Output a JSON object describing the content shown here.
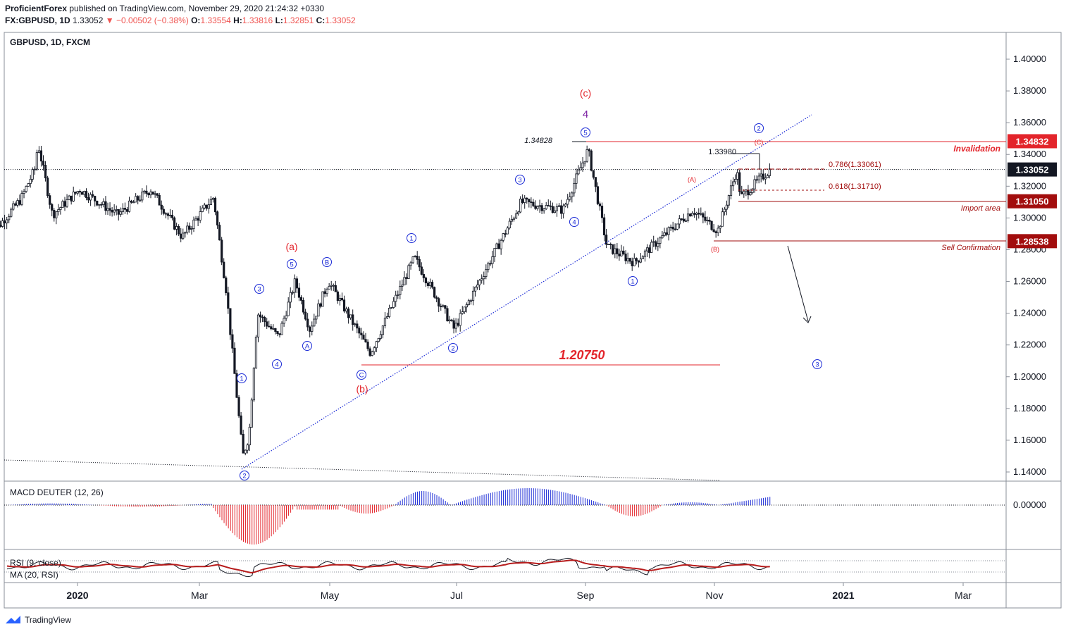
{
  "header": {
    "publisher": "ProficientForex",
    "published_text": "published on TradingView.com, November 29, 2020 21:24:32 +0330",
    "symbol_line": "FX:GBPUSD, 1D",
    "last": "1.33052",
    "change": "−0.00502 (−0.38%)",
    "o_label": "O:",
    "o_val": "1.33554",
    "h_label": "H:",
    "h_val": "1.33816",
    "l_label": "L:",
    "l_val": "1.32851",
    "c_label": "C:",
    "c_val": "1.33052"
  },
  "brand": {
    "label": "TradingView"
  },
  "colors": {
    "up": "#131722",
    "red": "#e3242b",
    "blue": "#1a2ad6",
    "label_dark": "#131722",
    "axis_red": "#e3242b",
    "axis_darkred": "#a20d0d",
    "purple": "#7b1fa2"
  },
  "chart_data": {
    "type": "candlestick",
    "title": "GBPUSD, 1D, FXCM",
    "y_axis": {
      "ticks": [
        "1.40000",
        "1.38000",
        "1.36000",
        "1.34000",
        "1.32000",
        "1.30000",
        "1.28000",
        "1.26000",
        "1.24000",
        "1.22000",
        "1.20000",
        "1.18000",
        "1.16000",
        "1.14000"
      ],
      "ylim": [
        1.135,
        1.405
      ]
    },
    "x_axis": {
      "ticks": [
        "2020",
        "Mar",
        "May",
        "Jul",
        "Sep",
        "Nov",
        "2021",
        "Mar"
      ],
      "bold": [
        "2020",
        "2021"
      ]
    },
    "price_path": [
      [
        "2019-11-20",
        1.288
      ],
      [
        "2019-12-05",
        1.312
      ],
      [
        "2019-12-12",
        1.332
      ],
      [
        "2019-12-13",
        1.348
      ],
      [
        "2019-12-20",
        1.302
      ],
      [
        "2020-01-02",
        1.318
      ],
      [
        "2020-01-20",
        1.302
      ],
      [
        "2020-02-05",
        1.318
      ],
      [
        "2020-02-20",
        1.288
      ],
      [
        "2020-03-06",
        1.313
      ],
      [
        "2020-03-12",
        1.255
      ],
      [
        "2020-03-20",
        1.15
      ],
      [
        "2020-03-23",
        1.163
      ],
      [
        "2020-03-27",
        1.24
      ],
      [
        "2020-04-06",
        1.225
      ],
      [
        "2020-04-14",
        1.26
      ],
      [
        "2020-04-21",
        1.23
      ],
      [
        "2020-04-30",
        1.26
      ],
      [
        "2020-05-20",
        1.215
      ],
      [
        "2020-06-10",
        1.275
      ],
      [
        "2020-06-29",
        1.23
      ],
      [
        "2020-07-31",
        1.31
      ],
      [
        "2020-08-20",
        1.305
      ],
      [
        "2020-09-01",
        1.343
      ],
      [
        "2020-09-10",
        1.282
      ],
      [
        "2020-09-23",
        1.272
      ],
      [
        "2020-10-21",
        1.305
      ],
      [
        "2020-11-02",
        1.292
      ],
      [
        "2020-11-11",
        1.33
      ],
      [
        "2020-11-13",
        1.313
      ],
      [
        "2020-11-27",
        1.3305
      ]
    ],
    "horizontal_levels": [
      {
        "label": "1.34832",
        "value": 1.34832,
        "axis_color": "#e3242b",
        "text": "Invalidation"
      },
      {
        "label": "1.33052",
        "value": 1.33052,
        "axis_color": "#131722",
        "text": ""
      },
      {
        "label": "1.31050",
        "value": 1.3105,
        "axis_color": "#a20d0d",
        "text": "Import area"
      },
      {
        "label": "1.28538",
        "value": 1.28538,
        "axis_color": "#a20d0d",
        "text": "Sell Confirmation"
      }
    ],
    "annotations": {
      "level_1_20750": "1.20750",
      "peak_high": "1.34828",
      "recent_high": "1.33980",
      "fib_786": "0.786(1.33061)",
      "fib_618": "0.618(1.31710)",
      "red_labels": [
        "(a)",
        "(b)",
        "(c)",
        "(A)",
        "(B)",
        "(C)"
      ],
      "purple_label": "4",
      "wave_circles": [
        "1",
        "2",
        "3",
        "4",
        "5",
        "A",
        "B",
        "C"
      ]
    },
    "macd": {
      "label": "MACD DEUTER (12, 26)",
      "zero_tick": "0.00000"
    },
    "rsi": {
      "label": "RSI (9, close)",
      "ma_label": "MA (20, RSI)"
    }
  }
}
